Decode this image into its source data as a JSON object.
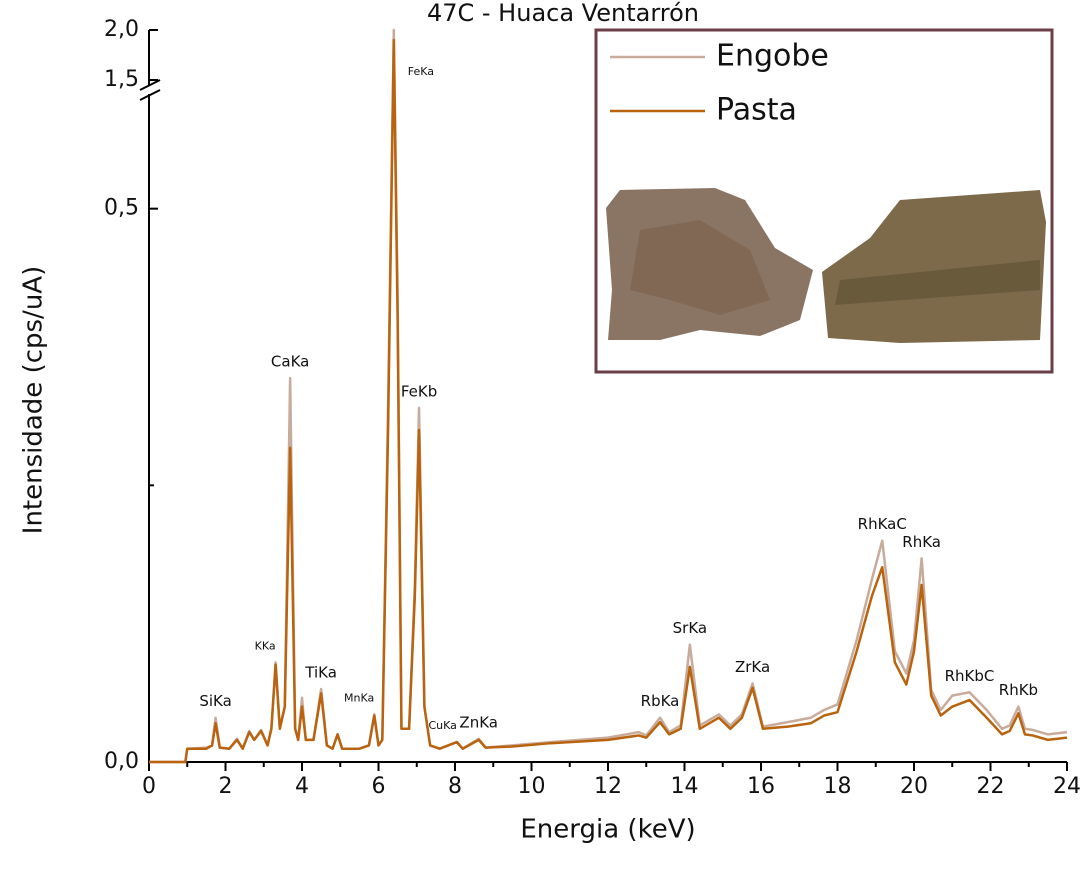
{
  "chart_data": {
    "type": "line",
    "title": "47C - Huaca Ventarrón",
    "xlabel": "Energia (keV)",
    "ylabel": "Intensidade (cps/uA)",
    "xlim": [
      0,
      24
    ],
    "xticks": [
      0,
      2,
      4,
      6,
      8,
      10,
      12,
      14,
      16,
      18,
      20,
      22,
      24
    ],
    "xminor_ticks": [
      1,
      3,
      5,
      7,
      9,
      11,
      13,
      15,
      17,
      19,
      21,
      23
    ],
    "ylim": [
      0,
      2.0
    ],
    "ybreak": [
      0.6,
      1.5
    ],
    "yticks": [
      {
        "value": 0,
        "label": "0,0"
      },
      {
        "value": 0.5,
        "label": "0,5"
      },
      {
        "value": 1.5,
        "label": "1,5"
      },
      {
        "value": 2.0,
        "label": "2,0"
      }
    ],
    "yminor_ticks": [
      0.25
    ],
    "legend": "upper right",
    "x": [
      0,
      0.95,
      1.0,
      1.5,
      1.65,
      1.74,
      1.85,
      2.1,
      2.3,
      2.45,
      2.62,
      2.75,
      2.93,
      3.1,
      3.2,
      3.31,
      3.42,
      3.55,
      3.69,
      3.82,
      3.9,
      4.0,
      4.1,
      4.3,
      4.5,
      4.65,
      4.8,
      4.93,
      5.05,
      5.5,
      5.75,
      5.89,
      6.0,
      6.1,
      6.25,
      6.4,
      6.5,
      6.6,
      6.8,
      6.95,
      7.06,
      7.2,
      7.35,
      7.6,
      8.05,
      8.2,
      8.62,
      8.8,
      9.5,
      10.5,
      12.0,
      12.8,
      13.0,
      13.36,
      13.6,
      13.9,
      14.14,
      14.4,
      14.9,
      15.2,
      15.5,
      15.78,
      16.05,
      16.7,
      17.3,
      17.65,
      18.0,
      18.5,
      18.9,
      19.17,
      19.5,
      19.8,
      20.0,
      20.2,
      20.45,
      20.7,
      21.0,
      21.45,
      21.9,
      22.3,
      22.5,
      22.73,
      22.9,
      23.1,
      23.5,
      24
    ],
    "series": [
      {
        "name": "Engobe",
        "color": "#c9ab9c",
        "values": [
          0,
          0,
          0.012,
          0.013,
          0.015,
          0.04,
          0.013,
          0.012,
          0.021,
          0.012,
          0.028,
          0.02,
          0.029,
          0.015,
          0.031,
          0.09,
          0.031,
          0.05,
          0.347,
          0.031,
          0.02,
          0.058,
          0.02,
          0.02,
          0.066,
          0.015,
          0.012,
          0.025,
          0.012,
          0.012,
          0.015,
          0.043,
          0.015,
          0.02,
          0.32,
          2.0,
          0.42,
          0.03,
          0.03,
          0.16,
          0.32,
          0.05,
          0.015,
          0.012,
          0.018,
          0.012,
          0.021,
          0.013,
          0.015,
          0.018,
          0.022,
          0.027,
          0.024,
          0.04,
          0.027,
          0.033,
          0.106,
          0.033,
          0.043,
          0.033,
          0.043,
          0.071,
          0.032,
          0.036,
          0.04,
          0.047,
          0.052,
          0.11,
          0.165,
          0.2,
          0.1,
          0.08,
          0.11,
          0.184,
          0.065,
          0.047,
          0.06,
          0.063,
          0.047,
          0.03,
          0.033,
          0.05,
          0.03,
          0.029,
          0.025,
          0.027
        ]
      },
      {
        "name": "Pasta",
        "color": "#b9630f",
        "values": [
          0,
          0,
          0.012,
          0.012,
          0.015,
          0.035,
          0.013,
          0.012,
          0.02,
          0.012,
          0.027,
          0.02,
          0.028,
          0.015,
          0.03,
          0.088,
          0.03,
          0.05,
          0.284,
          0.03,
          0.02,
          0.05,
          0.02,
          0.02,
          0.062,
          0.015,
          0.012,
          0.025,
          0.012,
          0.012,
          0.015,
          0.042,
          0.015,
          0.02,
          0.3,
          1.9,
          0.4,
          0.03,
          0.03,
          0.15,
          0.3,
          0.05,
          0.015,
          0.012,
          0.018,
          0.012,
          0.02,
          0.013,
          0.014,
          0.017,
          0.02,
          0.024,
          0.022,
          0.036,
          0.025,
          0.03,
          0.086,
          0.03,
          0.04,
          0.03,
          0.04,
          0.067,
          0.03,
          0.032,
          0.035,
          0.042,
          0.045,
          0.1,
          0.15,
          0.176,
          0.09,
          0.07,
          0.1,
          0.16,
          0.06,
          0.042,
          0.05,
          0.056,
          0.04,
          0.025,
          0.028,
          0.044,
          0.025,
          0.024,
          0.02,
          0.022
        ]
      }
    ],
    "annotations": [
      {
        "text": "SiKa",
        "x": 1.74
      },
      {
        "text": "KKa",
        "x": 3.31
      },
      {
        "text": "CaKa",
        "x": 3.69
      },
      {
        "text": "TiKa",
        "x": 4.5
      },
      {
        "text": "MnKa",
        "x": 5.89
      },
      {
        "text": "FeKa",
        "x": 6.4
      },
      {
        "text": "FeKb",
        "x": 7.06
      },
      {
        "text": "CuKa",
        "x": 8.05
      },
      {
        "text": "ZnKa",
        "x": 8.62
      },
      {
        "text": "RbKa",
        "x": 13.36
      },
      {
        "text": "SrKa",
        "x": 14.14
      },
      {
        "text": "ZrKa",
        "x": 15.78
      },
      {
        "text": "RhKaC",
        "x": 19.17
      },
      {
        "text": "RhKa",
        "x": 20.2
      },
      {
        "text": "RhKbC",
        "x": 21.45
      },
      {
        "text": "RhKb",
        "x": 22.73
      }
    ]
  }
}
